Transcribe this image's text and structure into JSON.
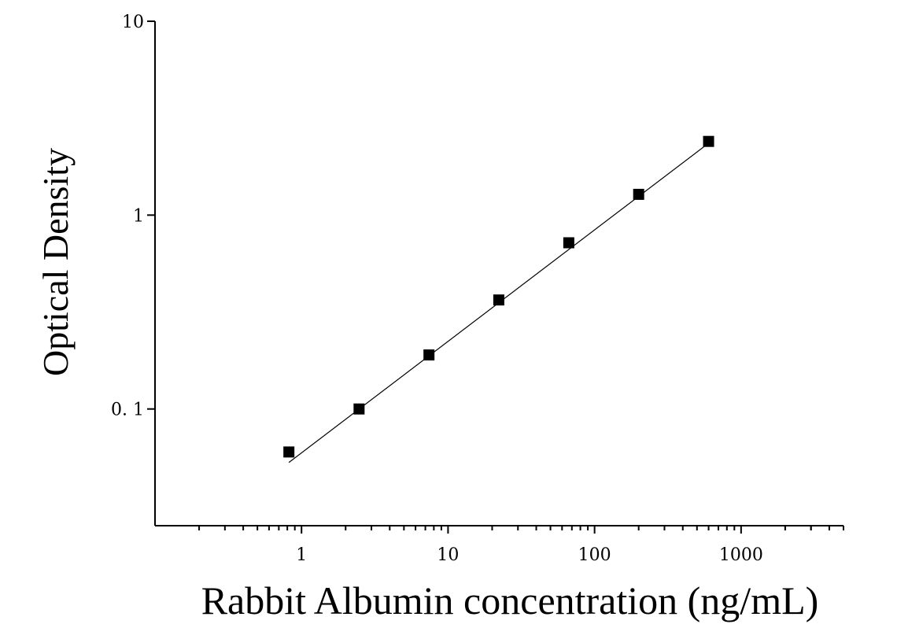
{
  "chart_data": {
    "type": "scatter",
    "x_scale": "log",
    "y_scale": "log",
    "xlabel": "Rabbit Albumin concentration (ng/mL)",
    "ylabel": "Optical Density",
    "xlim": [
      0.1,
      5000
    ],
    "ylim": [
      0.025,
      10
    ],
    "x_ticks": [
      1,
      10,
      100,
      1000
    ],
    "x_tick_labels": [
      "1",
      "10",
      "100",
      "1000"
    ],
    "y_ticks": [
      0.1,
      1,
      10
    ],
    "y_tick_labels": [
      "0. 1",
      "1",
      "10"
    ],
    "series": [
      {
        "marker": "square",
        "color": "#000000",
        "points": [
          {
            "x": 0.82,
            "y": 0.06
          },
          {
            "x": 2.47,
            "y": 0.1
          },
          {
            "x": 7.41,
            "y": 0.19
          },
          {
            "x": 22.2,
            "y": 0.365
          },
          {
            "x": 66.7,
            "y": 0.72
          },
          {
            "x": 200,
            "y": 1.28
          },
          {
            "x": 600,
            "y": 2.4
          }
        ]
      }
    ],
    "fit_line": {
      "color": "#000000",
      "from": {
        "x": 0.82,
        "y": 0.053
      },
      "to": {
        "x": 600,
        "y": 2.35
      }
    }
  }
}
